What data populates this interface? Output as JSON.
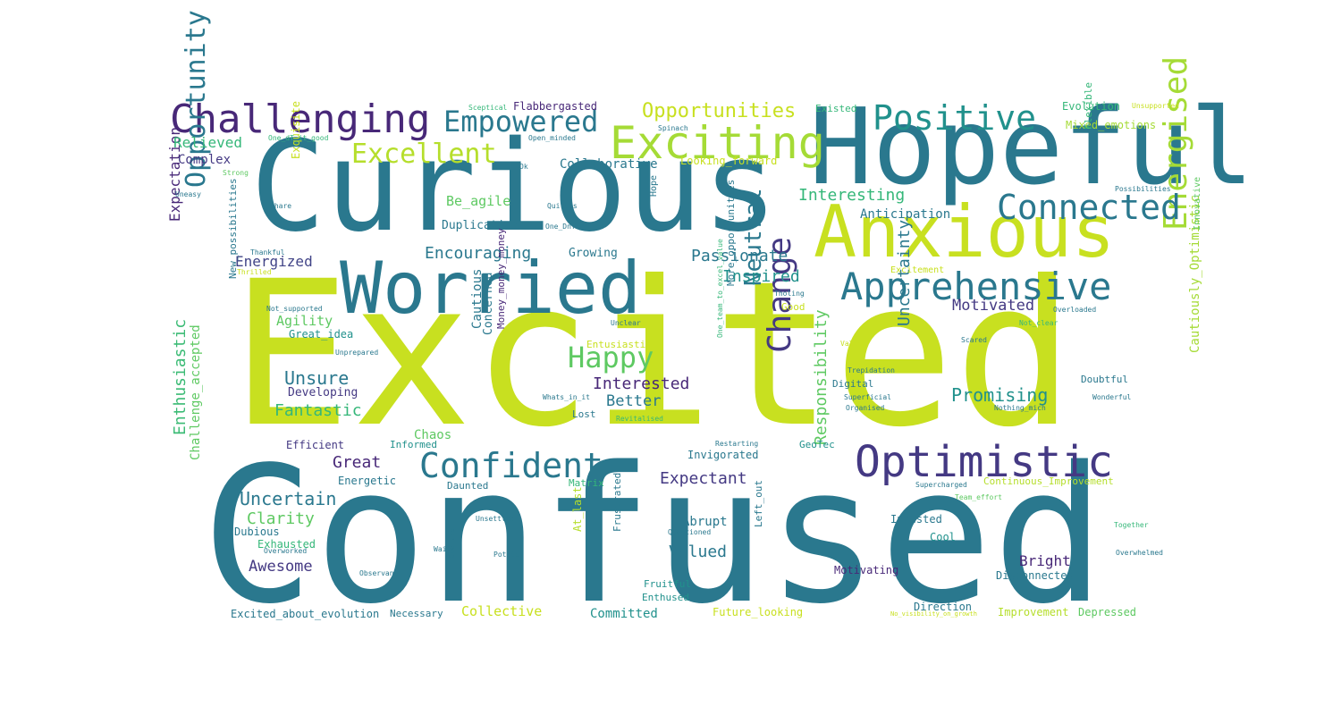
{
  "colors": {
    "background": "#ffffff"
  },
  "words": [
    {
      "text": "Excited",
      "color": "#c8e020"
    },
    {
      "text": "Confused",
      "color": "#2a788e"
    },
    {
      "text": "Curious",
      "color": "#2a788e"
    },
    {
      "text": "Hopeful",
      "color": "#2a788e"
    },
    {
      "text": "Worried",
      "color": "#2a788e"
    },
    {
      "text": "Anxious",
      "color": "#c8e020"
    },
    {
      "text": "Challenging",
      "color": "#482878"
    },
    {
      "text": "Exciting",
      "color": "#a5db36"
    },
    {
      "text": "Opportunity",
      "color": "#2a788e"
    },
    {
      "text": "Optimistic",
      "color": "#443983"
    },
    {
      "text": "Apprehensive",
      "color": "#2a788e"
    },
    {
      "text": "Energised",
      "color": "#a5db36"
    },
    {
      "text": "Connected",
      "color": "#2a788e"
    },
    {
      "text": "Positive",
      "color": "#21918c"
    },
    {
      "text": "Empowered",
      "color": "#2a788e"
    },
    {
      "text": "Confident",
      "color": "#2a788e"
    },
    {
      "text": "Change",
      "color": "#443983"
    },
    {
      "text": "Excellent",
      "color": "#b5de2b"
    },
    {
      "text": "Neutral",
      "color": "#2a788e"
    },
    {
      "text": "Happy",
      "color": "#5ec962"
    },
    {
      "text": "Opportunities",
      "color": "#c8e020"
    },
    {
      "text": "Expectation",
      "color": "#482878"
    },
    {
      "text": "Enthusiastic",
      "color": "#3bbb75"
    },
    {
      "text": "Uncertainty",
      "color": "#2a788e"
    },
    {
      "text": "Responsibility",
      "color": "#5ec962"
    },
    {
      "text": "Unsure",
      "color": "#2a788e"
    },
    {
      "text": "Uncertain",
      "color": "#2a788e"
    },
    {
      "text": "Encouraging",
      "color": "#2a788e"
    },
    {
      "text": "Passionate",
      "color": "#2a788e"
    },
    {
      "text": "Interesting",
      "color": "#35b779"
    },
    {
      "text": "Promising",
      "color": "#21918c"
    },
    {
      "text": "Expectant",
      "color": "#443983"
    },
    {
      "text": "Interested",
      "color": "#482878"
    },
    {
      "text": "Fantastic",
      "color": "#35b779"
    },
    {
      "text": "Inspired",
      "color": "#21918c"
    },
    {
      "text": "Energized",
      "color": "#414487"
    },
    {
      "text": "Motivated",
      "color": "#443983"
    },
    {
      "text": "Awesome",
      "color": "#443983"
    },
    {
      "text": "Clarity",
      "color": "#5ec962"
    },
    {
      "text": "Great",
      "color": "#482878"
    },
    {
      "text": "Better",
      "color": "#2a788e"
    },
    {
      "text": "Valued",
      "color": "#2a788e"
    },
    {
      "text": "Bright",
      "color": "#482878"
    },
    {
      "text": "Relieved",
      "color": "#35b779"
    },
    {
      "text": "Agility",
      "color": "#5ec962"
    },
    {
      "text": "Complex",
      "color": "#443983"
    },
    {
      "text": "Collaborative",
      "color": "#2a788e"
    },
    {
      "text": "Anticipation",
      "color": "#2a788e"
    },
    {
      "text": "Be_agile",
      "color": "#5ec962"
    },
    {
      "text": "Duplication",
      "color": "#2a788e"
    },
    {
      "text": "Growing",
      "color": "#2a788e"
    },
    {
      "text": "Cautious",
      "color": "#2a788e"
    },
    {
      "text": "Concerned",
      "color": "#2a788e"
    },
    {
      "text": "Developing",
      "color": "#443983"
    },
    {
      "text": "Chaos",
      "color": "#5ec962"
    },
    {
      "text": "Abrupt",
      "color": "#2a788e"
    },
    {
      "text": "Cautiously_Optimistic",
      "color": "#a5db36"
    },
    {
      "text": "Committed",
      "color": "#21918c"
    },
    {
      "text": "Collective",
      "color": "#c8e020"
    },
    {
      "text": "Challenge_accepted",
      "color": "#5ec962"
    },
    {
      "text": "Flabbergasted",
      "color": "#482878"
    },
    {
      "text": "Evolution",
      "color": "#35b779"
    },
    {
      "text": "Mixed_emotions",
      "color": "#a5db36"
    },
    {
      "text": "Existed",
      "color": "#35b779"
    },
    {
      "text": "Exquisite",
      "color": "#c8e020"
    },
    {
      "text": "Looking_forward",
      "color": "#c8e020"
    },
    {
      "text": "Great_idea",
      "color": "#21918c"
    },
    {
      "text": "Efficient",
      "color": "#443983"
    },
    {
      "text": "Informed",
      "color": "#21918c"
    },
    {
      "text": "Energetic",
      "color": "#2a788e"
    },
    {
      "text": "Daunted",
      "color": "#2a788e"
    },
    {
      "text": "Matrix",
      "color": "#35b779"
    },
    {
      "text": "Invigorated",
      "color": "#2a788e"
    },
    {
      "text": "GeoTec",
      "color": "#21918c"
    },
    {
      "text": "Dubious",
      "color": "#2a788e"
    },
    {
      "text": "Exhausted",
      "color": "#35b779"
    },
    {
      "text": "Invested",
      "color": "#2a788e"
    },
    {
      "text": "Cool",
      "color": "#21918c"
    },
    {
      "text": "Disconnected",
      "color": "#2a788e"
    },
    {
      "text": "Motivating",
      "color": "#482878"
    },
    {
      "text": "Direction",
      "color": "#2a788e"
    },
    {
      "text": "Improvement",
      "color": "#b5de2b"
    },
    {
      "text": "Depressed",
      "color": "#5ec962"
    },
    {
      "text": "Excited_about_evolution",
      "color": "#2a788e"
    },
    {
      "text": "Necessary",
      "color": "#2a788e"
    },
    {
      "text": "Future_looking",
      "color": "#c8e020"
    },
    {
      "text": "Fruitful",
      "color": "#21918c"
    },
    {
      "text": "Enthused",
      "color": "#21918c"
    },
    {
      "text": "Frustrated",
      "color": "#2a788e"
    },
    {
      "text": "At_last",
      "color": "#b5de2b"
    },
    {
      "text": "Left_out",
      "color": "#2a788e"
    },
    {
      "text": "Lost",
      "color": "#2a788e"
    },
    {
      "text": "Digital",
      "color": "#2a788e"
    },
    {
      "text": "Doubtful",
      "color": "#2a788e"
    },
    {
      "text": "Good",
      "color": "#c8e020"
    },
    {
      "text": "Entusiastic",
      "color": "#c8e020"
    },
    {
      "text": "Continuous_Improvement",
      "color": "#b5de2b"
    },
    {
      "text": "More_opportunities",
      "color": "#2a788e"
    },
    {
      "text": "Money_money_money",
      "color": "#482878"
    },
    {
      "text": "New_possibilities",
      "color": "#2a788e"
    },
    {
      "text": "Flexible",
      "color": "#35b779"
    },
    {
      "text": "Innovative",
      "color": "#5ec962"
    },
    {
      "text": "Hope",
      "color": "#2a788e"
    },
    {
      "text": "Excitement",
      "color": "#c8e020"
    },
    {
      "text": "Sceptical",
      "color": "#35b779"
    },
    {
      "text": "Open_minded",
      "color": "#2a788e"
    },
    {
      "text": "Spinach",
      "color": "#2a788e"
    },
    {
      "text": "Ok",
      "color": "#2a788e"
    },
    {
      "text": "One_dT_it_good",
      "color": "#35b779"
    },
    {
      "text": "Strong",
      "color": "#5ec962"
    },
    {
      "text": "Uneasy",
      "color": "#2a788e"
    },
    {
      "text": "Share",
      "color": "#2a788e"
    },
    {
      "text": "Quirous",
      "color": "#2a788e"
    },
    {
      "text": "One_DnT",
      "color": "#2a788e"
    },
    {
      "text": "Thankful",
      "color": "#2a788e"
    },
    {
      "text": "Thrilled",
      "color": "#c8e020"
    },
    {
      "text": "Not_supported",
      "color": "#2a788e"
    },
    {
      "text": "Unprepared",
      "color": "#2a788e"
    },
    {
      "text": "Unclear",
      "color": "#2a788e"
    },
    {
      "text": "Tholing",
      "color": "#2a788e"
    },
    {
      "text": "Overloaded",
      "color": "#2a788e"
    },
    {
      "text": "Not_clear",
      "color": "#35b779"
    },
    {
      "text": "Value",
      "color": "#c8e020"
    },
    {
      "text": "Scared",
      "color": "#2a788e"
    },
    {
      "text": "Trepidation",
      "color": "#2a788e"
    },
    {
      "text": "Superficial",
      "color": "#2a788e"
    },
    {
      "text": "Organised",
      "color": "#2a788e"
    },
    {
      "text": "Nothing_mich",
      "color": "#2a788e"
    },
    {
      "text": "Wonderful",
      "color": "#2a788e"
    },
    {
      "text": "Whats_in_it",
      "color": "#2a788e"
    },
    {
      "text": "Revitalised",
      "color": "#35b779"
    },
    {
      "text": "One_team_to_excel_value",
      "color": "#35b779"
    },
    {
      "text": "Restarting",
      "color": "#2a788e"
    },
    {
      "text": "Supercharged",
      "color": "#2a788e"
    },
    {
      "text": "Team_effort",
      "color": "#5ec962"
    },
    {
      "text": "Unsettled",
      "color": "#2a788e"
    },
    {
      "text": "Questioned",
      "color": "#2a788e"
    },
    {
      "text": "Together",
      "color": "#35b779"
    },
    {
      "text": "Overwhelmed",
      "color": "#2a788e"
    },
    {
      "text": "Overworked",
      "color": "#2a788e"
    },
    {
      "text": "Wait",
      "color": "#2a788e"
    },
    {
      "text": "Potato",
      "color": "#2a788e"
    },
    {
      "text": "Observant",
      "color": "#2a788e"
    },
    {
      "text": "Overlap",
      "color": "#2a788e"
    },
    {
      "text": "No_visibility_on_growth",
      "color": "#c8e020"
    },
    {
      "text": "Unsupported",
      "color": "#c8e020"
    },
    {
      "text": "Possibilities",
      "color": "#2a788e"
    }
  ]
}
